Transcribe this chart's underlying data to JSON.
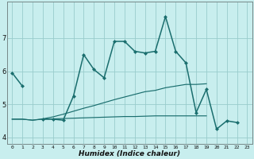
{
  "xlabel": "Humidex (Indice chaleur)",
  "bg_color": "#c8eeee",
  "grid_color": "#99cccc",
  "line_color": "#1a6e6e",
  "x": [
    0,
    1,
    2,
    3,
    4,
    5,
    6,
    7,
    8,
    9,
    10,
    11,
    12,
    13,
    14,
    15,
    16,
    17,
    18,
    19,
    20,
    21,
    22,
    23
  ],
  "line1": [
    5.95,
    5.55,
    null,
    4.55,
    4.55,
    4.52,
    5.25,
    6.5,
    6.05,
    5.8,
    6.9,
    6.9,
    6.6,
    6.55,
    6.6,
    7.65,
    6.6,
    6.25,
    4.75,
    5.45,
    4.25,
    4.5,
    4.45,
    null
  ],
  "line2_flat": [
    4.55,
    4.55,
    4.52,
    4.55,
    4.56,
    4.57,
    4.58,
    4.59,
    4.6,
    4.61,
    4.62,
    4.63,
    4.63,
    4.64,
    4.65,
    4.65,
    4.65,
    4.65,
    4.65,
    4.65,
    null,
    null,
    null,
    null
  ],
  "line3_slope": [
    4.55,
    4.55,
    4.52,
    4.56,
    4.62,
    4.7,
    4.79,
    4.88,
    4.96,
    5.05,
    5.14,
    5.22,
    5.3,
    5.38,
    5.42,
    5.5,
    5.55,
    5.6,
    5.6,
    5.62,
    null,
    null,
    null,
    null
  ],
  "ylim": [
    3.8,
    8.1
  ],
  "xlim": [
    -0.5,
    23.5
  ],
  "yticks": [
    4,
    5,
    6,
    7
  ],
  "xticks": [
    0,
    1,
    2,
    3,
    4,
    5,
    6,
    7,
    8,
    9,
    10,
    11,
    12,
    13,
    14,
    15,
    16,
    17,
    18,
    19,
    20,
    21,
    22,
    23
  ]
}
